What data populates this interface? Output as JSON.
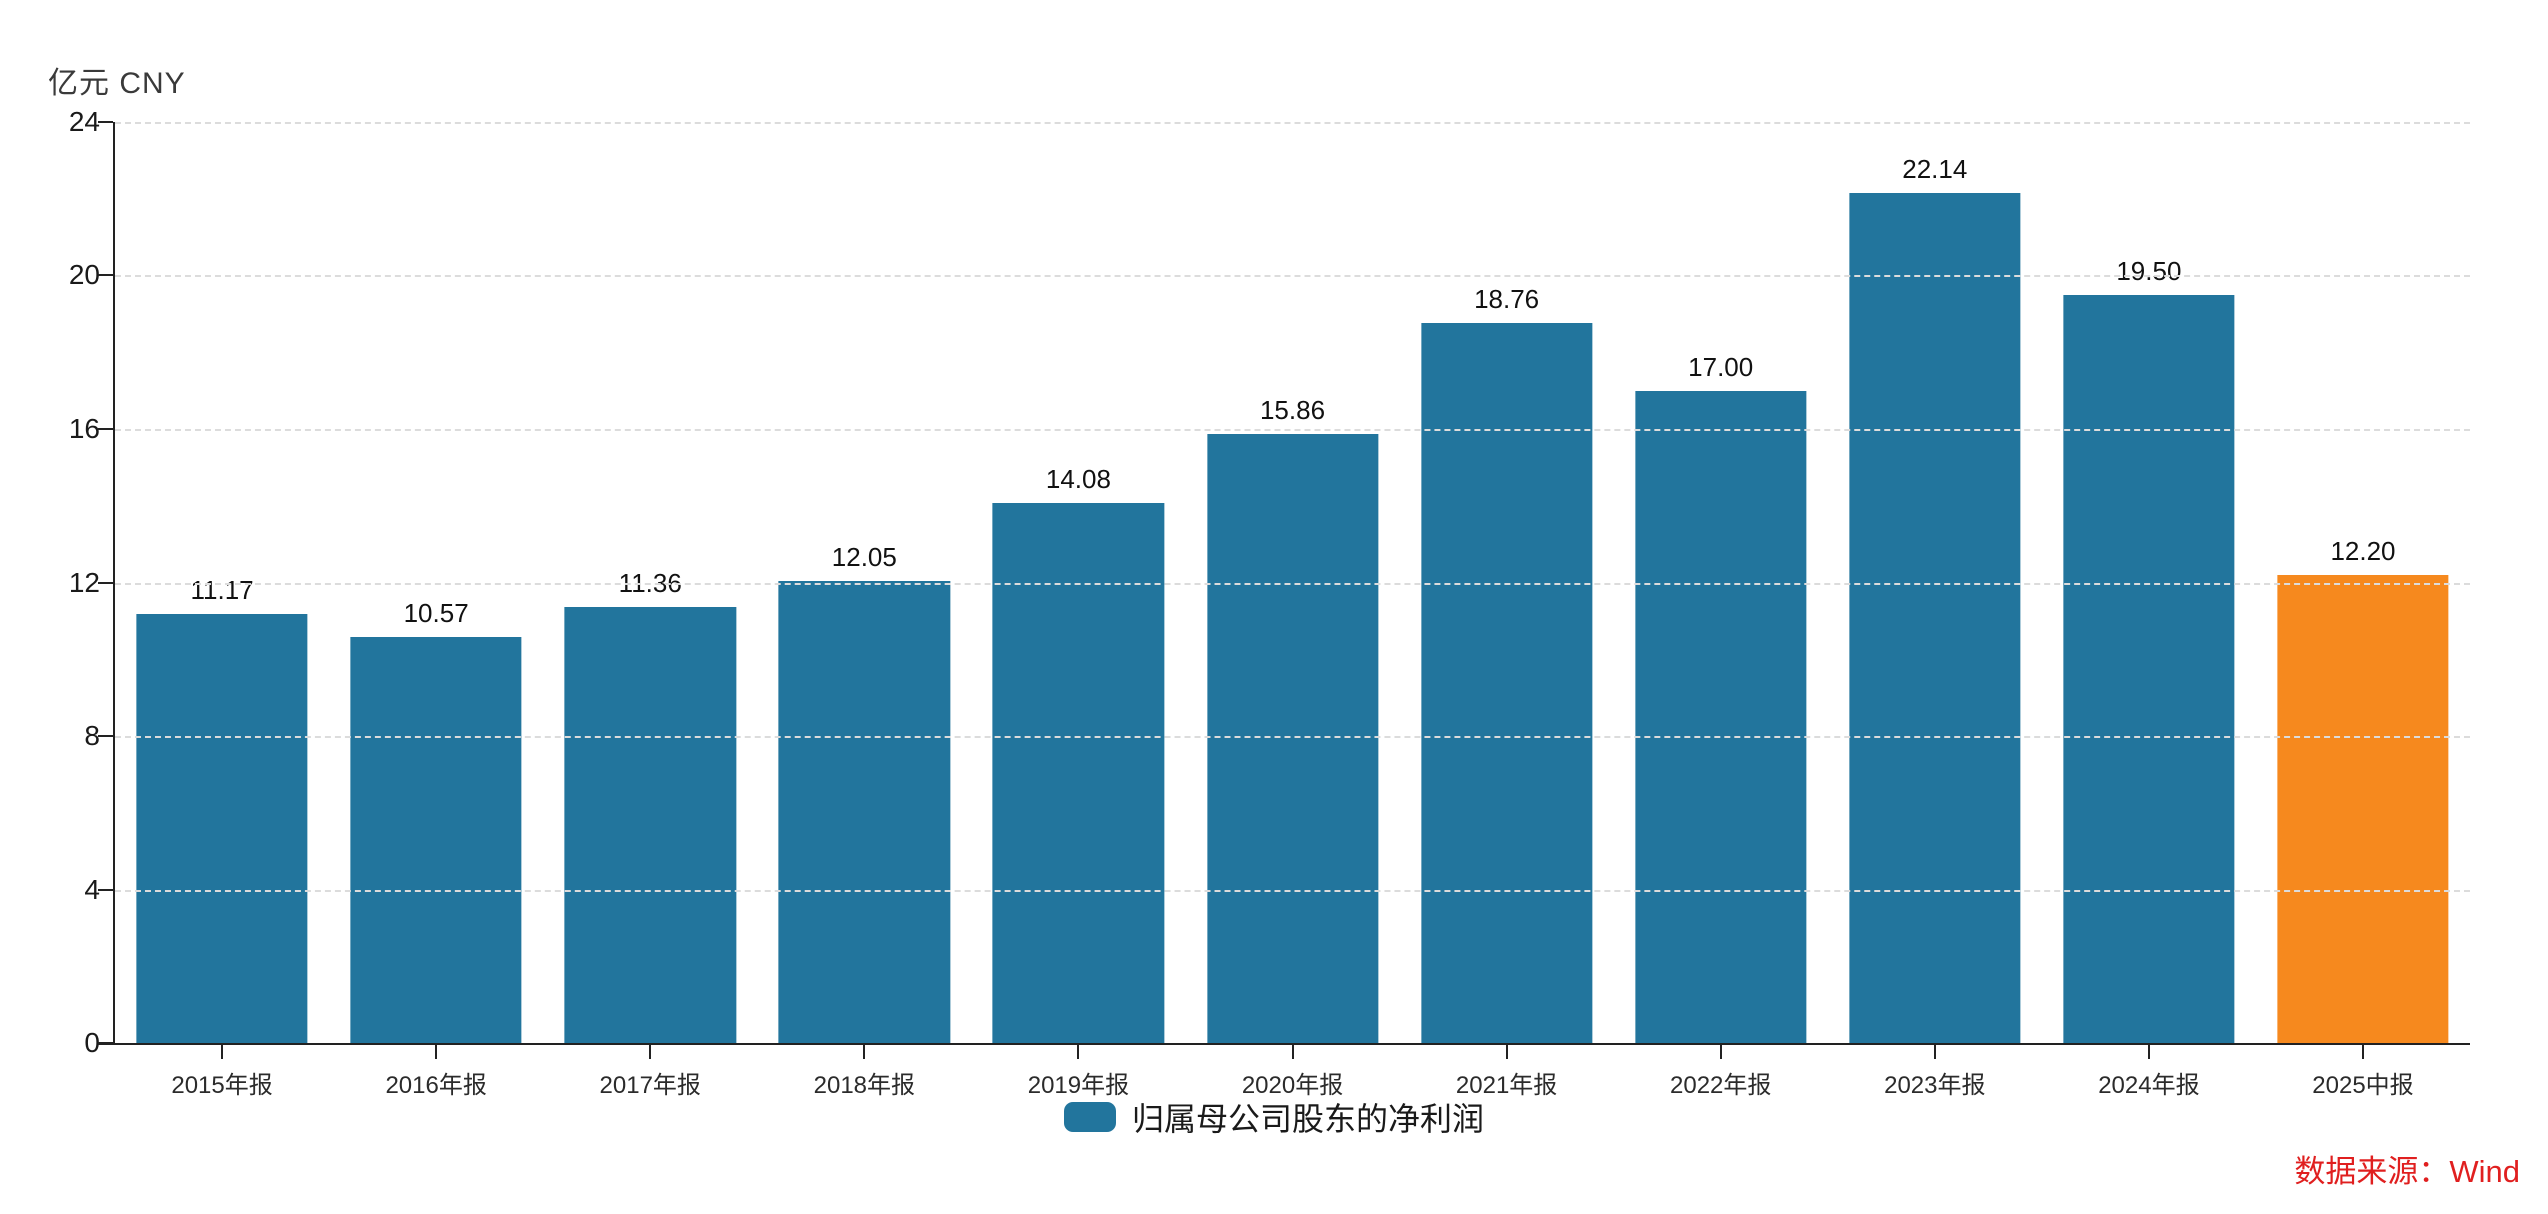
{
  "chart_data": {
    "type": "bar",
    "unit_label": "亿元 CNY",
    "categories": [
      "2015年报",
      "2016年报",
      "2017年报",
      "2018年报",
      "2019年报",
      "2020年报",
      "2021年报",
      "2022年报",
      "2023年报",
      "2024年报",
      "2025中报"
    ],
    "series": [
      {
        "name": "归属母公司股东的净利润",
        "values": [
          11.17,
          10.57,
          11.36,
          12.05,
          14.08,
          15.86,
          18.76,
          17.0,
          22.14,
          19.5,
          12.2
        ],
        "value_labels": [
          "11.17",
          "10.57",
          "11.36",
          "12.05",
          "14.08",
          "15.86",
          "18.76",
          "17.00",
          "22.14",
          "19.50",
          "12.20"
        ]
      }
    ],
    "ylim": [
      0,
      24
    ],
    "yticks": [
      0,
      4,
      8,
      12,
      16,
      20,
      24
    ],
    "grid": "horizontal-dashed",
    "legend_position": "bottom-center",
    "bar_color": "#22759D",
    "highlight_color": "#F6891E",
    "highlight_index": 10
  },
  "legend": {
    "label": "归属母公司股东的净利润"
  },
  "footer": {
    "source_label": "数据来源：Wind",
    "source_color": "#E01F1F"
  }
}
